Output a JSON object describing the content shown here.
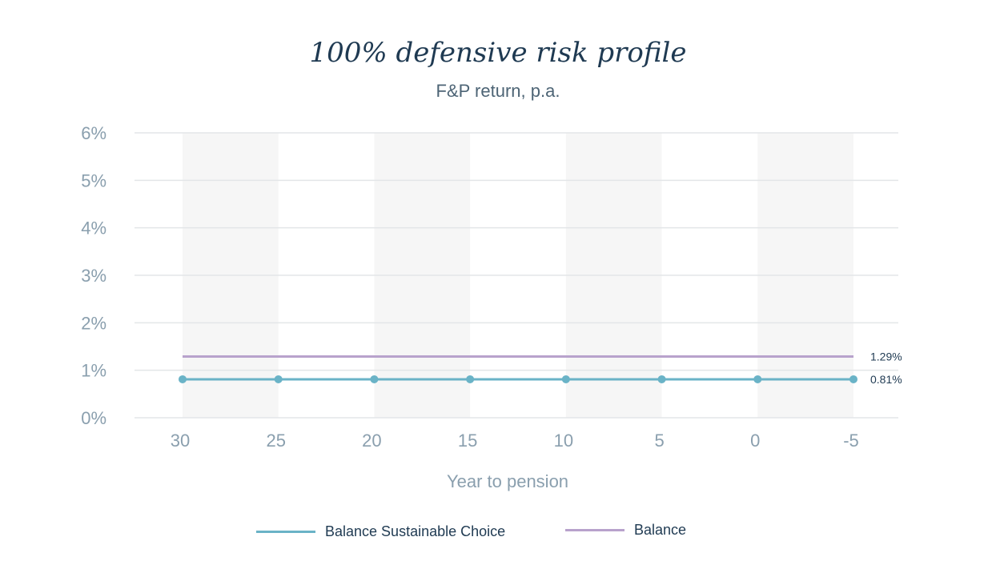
{
  "title": "100% defensive risk profile",
  "subtitle": "F&P return, p.a.",
  "chart_data": {
    "type": "line",
    "title": "100% defensive risk profile",
    "subtitle": "F&P return, p.a.",
    "xlabel": "Year to pension",
    "ylabel": "",
    "x": [
      30,
      25,
      20,
      15,
      10,
      5,
      0,
      -5
    ],
    "x_tick_labels": [
      "30",
      "25",
      "20",
      "15",
      "10",
      "5",
      "0",
      "-5"
    ],
    "y_tick_labels": [
      "0%",
      "1%",
      "2%",
      "3%",
      "4%",
      "5%",
      "6%"
    ],
    "ylim": [
      0,
      6
    ],
    "grid": "horizontal",
    "legend_position": "bottom",
    "series": [
      {
        "name": "Balance Sustainable Choice",
        "values": [
          0.81,
          0.81,
          0.81,
          0.81,
          0.81,
          0.81,
          0.81,
          0.81
        ],
        "color": "#6ab3c7",
        "markers": true,
        "end_label": "0.81%"
      },
      {
        "name": "Balance",
        "values": [
          1.29,
          1.29,
          1.29,
          1.29,
          1.29,
          1.29,
          1.29,
          1.29
        ],
        "color": "#b8a2cc",
        "markers": false,
        "end_label": "1.29%"
      }
    ]
  },
  "colors": {
    "title": "#1f3a52",
    "axis_text": "#8a9fae",
    "gridline": "#e3e6e8",
    "band": "#f6f6f6"
  }
}
